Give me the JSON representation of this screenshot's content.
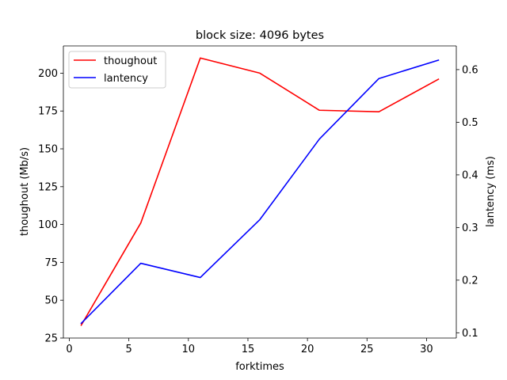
{
  "chart_data": {
    "type": "line",
    "title": "block size: 4096 bytes",
    "xlabel": "forktimes",
    "ylabel_left": "thoughout (Mb/s)",
    "ylabel_right": "lantency (ms)",
    "x": [
      1,
      6,
      11,
      16,
      21,
      26,
      31
    ],
    "xlim": [
      -0.5,
      32.5
    ],
    "ylim_left": [
      25,
      218
    ],
    "ylim_right": [
      0.09,
      0.645
    ],
    "x_ticks": [
      0,
      5,
      10,
      15,
      20,
      25,
      30
    ],
    "y_ticks_left": [
      25,
      50,
      75,
      100,
      125,
      150,
      175,
      200
    ],
    "y_ticks_right": [
      0.1,
      0.2,
      0.3,
      0.4,
      0.5,
      0.6
    ],
    "grid": false,
    "legend_position": "upper-left",
    "series": [
      {
        "name": "thoughout",
        "axis": "left",
        "color": "#ff0000",
        "values": [
          33.5,
          101,
          210,
          200,
          175.5,
          174.5,
          196
        ]
      },
      {
        "name": "lantency",
        "axis": "right",
        "color": "#0000ff",
        "values": [
          0.118,
          0.232,
          0.205,
          0.315,
          0.468,
          0.583,
          0.618
        ]
      }
    ]
  }
}
